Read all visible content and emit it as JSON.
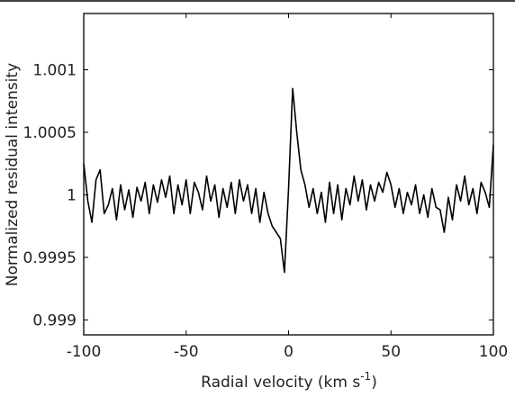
{
  "chart_data": {
    "type": "line",
    "xlabel": [
      "Radial velocity (km s",
      "-1",
      ")"
    ],
    "ylabel": "Normalized residual intensity",
    "x": [
      -100,
      -98,
      -96,
      -94,
      -92,
      -90,
      -88,
      -86,
      -84,
      -82,
      -80,
      -78,
      -76,
      -74,
      -72,
      -70,
      -68,
      -66,
      -64,
      -62,
      -60,
      -58,
      -56,
      -54,
      -52,
      -50,
      -48,
      -46,
      -44,
      -42,
      -40,
      -38,
      -36,
      -34,
      -32,
      -30,
      -28,
      -26,
      -24,
      -22,
      -20,
      -18,
      -16,
      -14,
      -12,
      -10,
      -8,
      -6,
      -4,
      -2,
      0,
      2,
      4,
      6,
      8,
      10,
      12,
      14,
      16,
      18,
      20,
      22,
      24,
      26,
      28,
      30,
      32,
      34,
      36,
      38,
      40,
      42,
      44,
      46,
      48,
      50,
      52,
      54,
      56,
      58,
      60,
      62,
      64,
      66,
      68,
      70,
      72,
      74,
      76,
      78,
      80,
      82,
      84,
      86,
      88,
      90,
      92,
      94,
      96,
      98,
      100
    ],
    "series": [
      {
        "color": "#000000",
        "values": [
          1.00025,
          0.99995,
          0.99978,
          1.00012,
          1.0002,
          0.99985,
          0.99992,
          1.00005,
          0.9998,
          1.00008,
          0.99988,
          1.00004,
          0.99982,
          1.00006,
          0.99995,
          1.0001,
          0.99985,
          1.00008,
          0.99994,
          1.00012,
          0.99998,
          1.00015,
          0.99985,
          1.00008,
          0.99992,
          1.00012,
          0.99985,
          1.0001,
          1.00002,
          0.99988,
          1.00015,
          0.99995,
          1.00008,
          0.99982,
          1.00005,
          0.9999,
          1.0001,
          0.99985,
          1.00012,
          0.99995,
          1.00008,
          0.99985,
          1.00005,
          0.99978,
          1.00002,
          0.99985,
          0.99975,
          0.9997,
          0.99965,
          0.99938,
          1.00005,
          1.00085,
          1.0005,
          1.0002,
          1.00008,
          0.9999,
          1.00005,
          0.99985,
          1.00002,
          0.99978,
          1.0001,
          0.99985,
          1.00008,
          0.9998,
          1.00005,
          0.99992,
          1.00015,
          0.99995,
          1.00012,
          0.99988,
          1.00008,
          0.99995,
          1.0001,
          1.00002,
          1.00018,
          1.00008,
          0.9999,
          1.00005,
          0.99985,
          1.00002,
          0.99992,
          1.00008,
          0.99985,
          1.0,
          0.99982,
          1.00005,
          0.9999,
          0.99988,
          0.9997,
          0.99998,
          0.9998,
          1.00008,
          0.99995,
          1.00015,
          0.99992,
          1.00005,
          0.99985,
          1.0001,
          1.00002,
          0.9999,
          1.0004
        ]
      }
    ],
    "xlim": [
      -100,
      100
    ],
    "xticks": [
      -100,
      -50,
      0,
      50,
      100
    ],
    "ylim": [
      0.99888,
      1.00145
    ],
    "yticks": [
      0.999,
      0.9995,
      1,
      1.0005,
      1.001
    ]
  }
}
